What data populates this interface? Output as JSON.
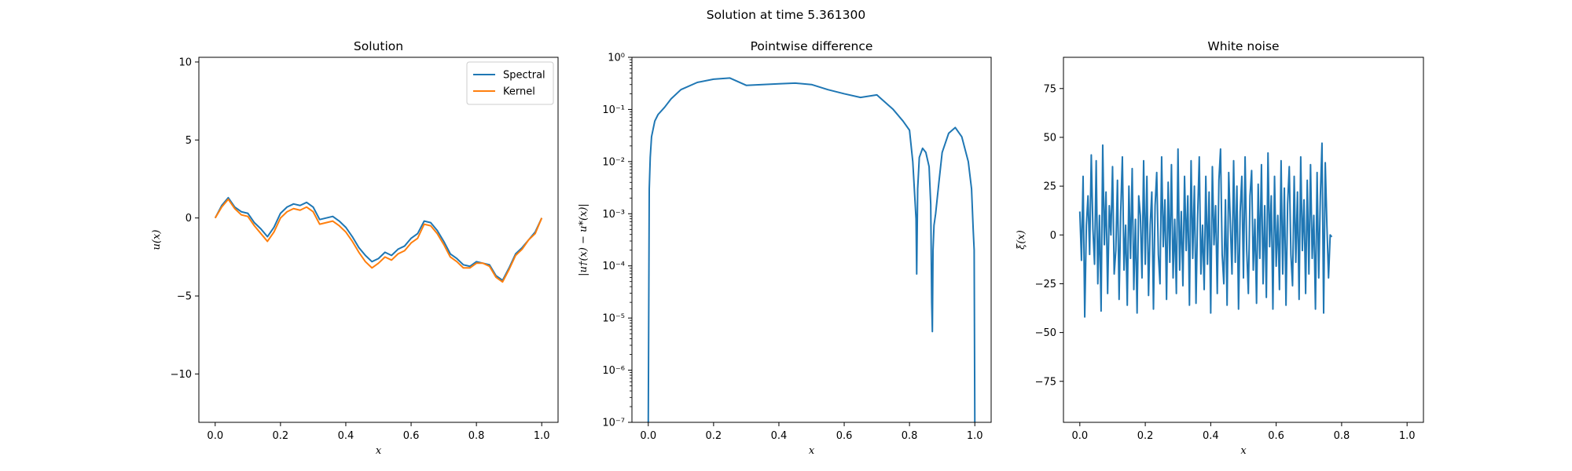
{
  "figure": {
    "suptitle": "Solution at time 5.361300"
  },
  "chart_data": [
    {
      "type": "line",
      "title": "Solution",
      "xlabel": "x",
      "ylabel": "u(x)",
      "xlim": [
        -0.05,
        1.05
      ],
      "ylim": [
        -13.1,
        10.3
      ],
      "xticks": [
        0.0,
        0.2,
        0.4,
        0.6,
        0.8,
        1.0
      ],
      "xtick_labels": [
        "0.0",
        "0.2",
        "0.4",
        "0.6",
        "0.8",
        "1.0"
      ],
      "yticks": [
        -10,
        -5,
        0,
        5,
        10
      ],
      "ytick_labels": [
        "−10",
        "−5",
        "0",
        "5",
        "10"
      ],
      "legend_position": "top-right",
      "series": [
        {
          "name": "Spectral",
          "color": "#1f77b4",
          "x": [
            0.0,
            0.02,
            0.04,
            0.06,
            0.08,
            0.1,
            0.12,
            0.14,
            0.16,
            0.18,
            0.2,
            0.22,
            0.24,
            0.26,
            0.28,
            0.3,
            0.32,
            0.34,
            0.36,
            0.38,
            0.4,
            0.42,
            0.44,
            0.46,
            0.48,
            0.5,
            0.52,
            0.54,
            0.56,
            0.58,
            0.6,
            0.62,
            0.64,
            0.66,
            0.68,
            0.7,
            0.72,
            0.74,
            0.76,
            0.78,
            0.8,
            0.82,
            0.84,
            0.86,
            0.88,
            0.9,
            0.92,
            0.94,
            0.96,
            0.98,
            1.0
          ],
          "values": [
            0.0,
            0.8,
            1.3,
            0.7,
            0.4,
            0.3,
            -0.3,
            -0.7,
            -1.2,
            -0.6,
            0.3,
            0.7,
            0.9,
            0.8,
            1.0,
            0.7,
            -0.1,
            0.0,
            0.1,
            -0.2,
            -0.6,
            -1.2,
            -1.9,
            -2.4,
            -2.8,
            -2.6,
            -2.2,
            -2.4,
            -2.0,
            -1.8,
            -1.3,
            -1.0,
            -0.2,
            -0.3,
            -0.8,
            -1.5,
            -2.3,
            -2.6,
            -3.0,
            -3.1,
            -2.8,
            -2.9,
            -3.0,
            -3.7,
            -4.0,
            -3.2,
            -2.3,
            -1.9,
            -1.4,
            -0.9,
            0.0
          ]
        },
        {
          "name": "Kernel",
          "color": "#ff7f0e",
          "x": [
            0.0,
            0.02,
            0.04,
            0.06,
            0.08,
            0.1,
            0.12,
            0.14,
            0.16,
            0.18,
            0.2,
            0.22,
            0.24,
            0.26,
            0.28,
            0.3,
            0.32,
            0.34,
            0.36,
            0.38,
            0.4,
            0.42,
            0.44,
            0.46,
            0.48,
            0.5,
            0.52,
            0.54,
            0.56,
            0.58,
            0.6,
            0.62,
            0.64,
            0.66,
            0.68,
            0.7,
            0.72,
            0.74,
            0.76,
            0.78,
            0.8,
            0.82,
            0.84,
            0.86,
            0.88,
            0.9,
            0.92,
            0.94,
            0.96,
            0.98,
            1.0
          ],
          "values": [
            0.0,
            0.7,
            1.2,
            0.6,
            0.2,
            0.1,
            -0.5,
            -1.0,
            -1.5,
            -0.9,
            0.0,
            0.4,
            0.6,
            0.5,
            0.7,
            0.4,
            -0.4,
            -0.3,
            -0.2,
            -0.5,
            -0.9,
            -1.5,
            -2.2,
            -2.8,
            -3.2,
            -2.9,
            -2.5,
            -2.7,
            -2.3,
            -2.1,
            -1.6,
            -1.3,
            -0.4,
            -0.5,
            -1.0,
            -1.7,
            -2.5,
            -2.8,
            -3.2,
            -3.2,
            -2.9,
            -2.9,
            -3.1,
            -3.8,
            -4.1,
            -3.3,
            -2.4,
            -2.0,
            -1.4,
            -1.0,
            0.0
          ]
        }
      ]
    },
    {
      "type": "line",
      "title": "Pointwise difference",
      "xlabel": "x",
      "ylabel": "|u†(x) − u*(x)|",
      "yscale": "log",
      "xlim": [
        -0.05,
        1.05
      ],
      "ylim": [
        1e-07,
        1.0
      ],
      "xticks": [
        0.0,
        0.2,
        0.4,
        0.6,
        0.8,
        1.0
      ],
      "xtick_labels": [
        "0.0",
        "0.2",
        "0.4",
        "0.6",
        "0.8",
        "1.0"
      ],
      "yticks": [
        1e-07,
        1e-06,
        1e-05,
        0.0001,
        0.001,
        0.01,
        0.1,
        1
      ],
      "ytick_labels": [
        "10⁻⁷",
        "10⁻⁶",
        "10⁻⁵",
        "10⁻⁴",
        "10⁻³",
        "10⁻²",
        "10⁻¹",
        "10⁰"
      ],
      "series": [
        {
          "color": "#1f77b4",
          "x": [
            0.0,
            0.003,
            0.006,
            0.01,
            0.02,
            0.03,
            0.05,
            0.07,
            0.1,
            0.15,
            0.2,
            0.25,
            0.3,
            0.35,
            0.4,
            0.45,
            0.5,
            0.55,
            0.6,
            0.65,
            0.7,
            0.75,
            0.78,
            0.8,
            0.81,
            0.82,
            0.822,
            0.825,
            0.83,
            0.84,
            0.85,
            0.86,
            0.865,
            0.868,
            0.87,
            0.872,
            0.875,
            0.88,
            0.89,
            0.9,
            0.92,
            0.94,
            0.96,
            0.98,
            0.99,
            0.995,
            0.998,
            1.0
          ],
          "values": [
            1e-07,
            0.003,
            0.012,
            0.03,
            0.06,
            0.08,
            0.11,
            0.16,
            0.24,
            0.33,
            0.38,
            0.4,
            0.29,
            0.3,
            0.31,
            0.32,
            0.3,
            0.24,
            0.2,
            0.17,
            0.19,
            0.1,
            0.06,
            0.04,
            0.01,
            0.0008,
            7e-05,
            0.003,
            0.012,
            0.018,
            0.015,
            0.008,
            0.0015,
            2e-05,
            5.5e-06,
            0.0002,
            0.0006,
            0.001,
            0.004,
            0.015,
            0.035,
            0.045,
            0.03,
            0.01,
            0.003,
            0.0005,
            0.0002,
            1e-07
          ]
        }
      ]
    },
    {
      "type": "line",
      "title": "White noise",
      "xlabel": "x",
      "ylabel": "ξ(x)",
      "xlim": [
        -0.05,
        1.05
      ],
      "ylim": [
        -96,
        91
      ],
      "xticks": [
        0.0,
        0.2,
        0.4,
        0.6,
        0.8,
        1.0
      ],
      "xtick_labels": [
        "0.0",
        "0.2",
        "0.4",
        "0.6",
        "0.8",
        "1.0"
      ],
      "yticks": [
        -75,
        -50,
        -25,
        0,
        25,
        50,
        75
      ],
      "ytick_labels": [
        "−75",
        "−50",
        "−25",
        "0",
        "25",
        "50",
        "75"
      ],
      "series": [
        {
          "color": "#1f77b4",
          "x_start": 0.0,
          "x_step": 0.005,
          "values": [
            12,
            -13,
            30,
            -42,
            5,
            20,
            -10,
            41,
            3,
            -15,
            38,
            -25,
            10,
            -39,
            46,
            -5,
            22,
            -30,
            15,
            0,
            35,
            -20,
            -8,
            28,
            -33,
            12,
            40,
            -18,
            5,
            -36,
            25,
            -12,
            34,
            -28,
            8,
            -40,
            20,
            10,
            -22,
            38,
            -15,
            30,
            -31,
            5,
            22,
            -38,
            15,
            32,
            -10,
            -25,
            40,
            -6,
            18,
            -33,
            27,
            -14,
            36,
            -22,
            8,
            -30,
            44,
            -18,
            12,
            -26,
            30,
            -8,
            20,
            -36,
            38,
            -12,
            25,
            -35,
            10,
            40,
            -20,
            5,
            -28,
            30,
            -15,
            22,
            -40,
            35,
            -5,
            15,
            -30,
            28,
            44,
            -10,
            -25,
            18,
            -36,
            32,
            6,
            -20,
            38,
            -14,
            25,
            -38,
            12,
            30,
            -22,
            40,
            -8,
            -30,
            20,
            33,
            -18,
            8,
            -35,
            26,
            -12,
            36,
            -25,
            15,
            -32,
            42,
            -6,
            20,
            -38,
            30,
            -16,
            10,
            -28,
            38,
            -20,
            24,
            -36,
            16,
            35,
            -10,
            -26,
            30,
            -14,
            22,
            -33,
            40,
            -8,
            18,
            -30,
            28,
            -20,
            36,
            -12,
            10,
            -38,
            32,
            -22,
            20,
            47,
            -40,
            37,
            5,
            -22,
            0,
            -1
          ]
        }
      ]
    }
  ]
}
